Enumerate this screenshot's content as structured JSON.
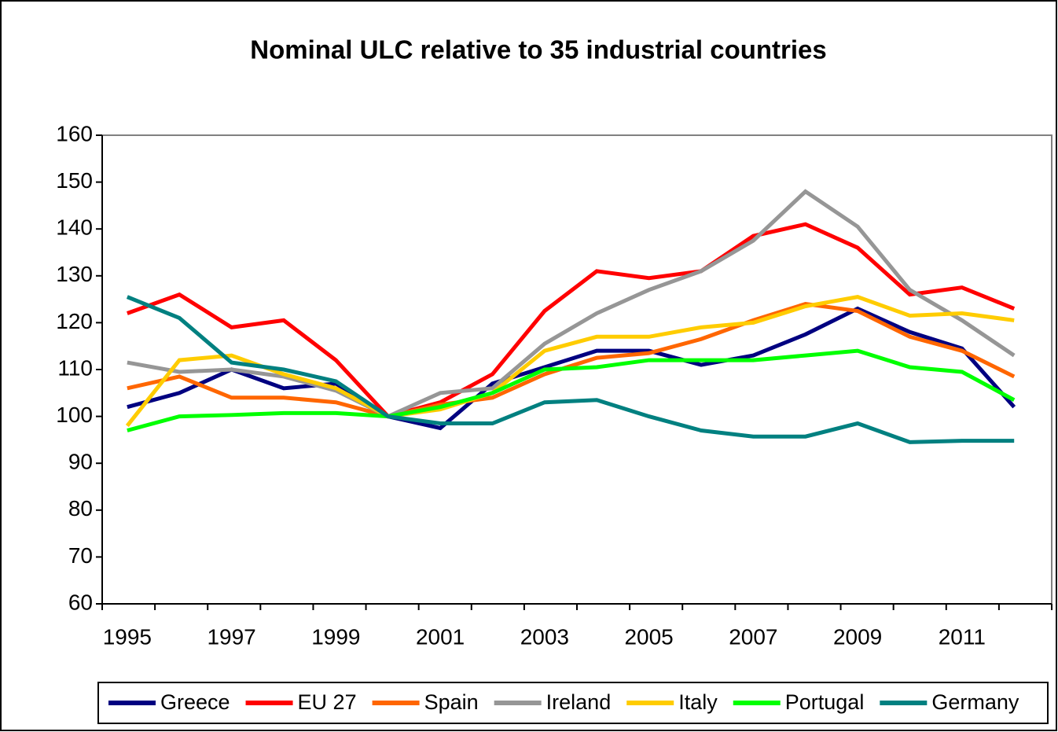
{
  "chart_data": {
    "type": "line",
    "title": "Nominal ULC relative to 35 industrial countries",
    "categories": [
      "1995",
      null,
      "1997",
      null,
      "1999",
      null,
      "2001",
      null,
      "2003",
      null,
      "2005",
      null,
      "2007",
      null,
      "2009",
      null,
      "2011",
      null
    ],
    "ylim": [
      60,
      160
    ],
    "yticks": [
      60,
      70,
      80,
      90,
      100,
      110,
      120,
      130,
      140,
      150,
      160
    ],
    "grid": false,
    "legend": "bottom",
    "series": [
      {
        "name": "Greece",
        "color": "#000080",
        "values": [
          102,
          105,
          110,
          106,
          107,
          100,
          97.5,
          107,
          110.5,
          114,
          114,
          111,
          113,
          117.5,
          123,
          118,
          114.5,
          102
        ]
      },
      {
        "name": "EU 27",
        "color": "#ff0000",
        "values": [
          122,
          126,
          119,
          120.5,
          112,
          100,
          103,
          109,
          122.5,
          131,
          129.5,
          131,
          138.5,
          141,
          136,
          126,
          127.5,
          123
        ]
      },
      {
        "name": "Spain",
        "color": "#ff6600",
        "values": [
          106,
          108.5,
          104,
          104,
          103,
          100,
          102.5,
          104,
          109,
          112.5,
          113.5,
          116.5,
          120.5,
          124,
          122.5,
          117,
          114,
          108.5
        ]
      },
      {
        "name": "Ireland",
        "color": "#969696",
        "values": [
          111.5,
          109.5,
          110,
          108.5,
          105.5,
          100,
          105,
          106,
          115.5,
          122,
          127,
          131,
          137.5,
          148,
          140.5,
          127,
          120.5,
          113
        ]
      },
      {
        "name": "Italy",
        "color": "#ffcc00",
        "values": [
          98,
          112,
          113,
          109,
          106,
          100,
          101.5,
          105,
          114,
          117,
          117,
          119,
          120,
          123.5,
          125.5,
          121.5,
          122,
          120.5
        ]
      },
      {
        "name": "Portugal",
        "color": "#00ff00",
        "values": [
          97,
          100,
          100.3,
          100.7,
          100.7,
          100,
          102,
          105,
          110,
          110.5,
          112,
          112,
          112,
          113,
          114,
          110.5,
          109.5,
          103.5
        ]
      },
      {
        "name": "Germany",
        "color": "#008080",
        "values": [
          125.5,
          121,
          111.5,
          110,
          107.5,
          100,
          98.5,
          98.5,
          103,
          103.5,
          100,
          97,
          95.7,
          95.7,
          98.5,
          94.5,
          94.8,
          94.8
        ]
      }
    ]
  }
}
